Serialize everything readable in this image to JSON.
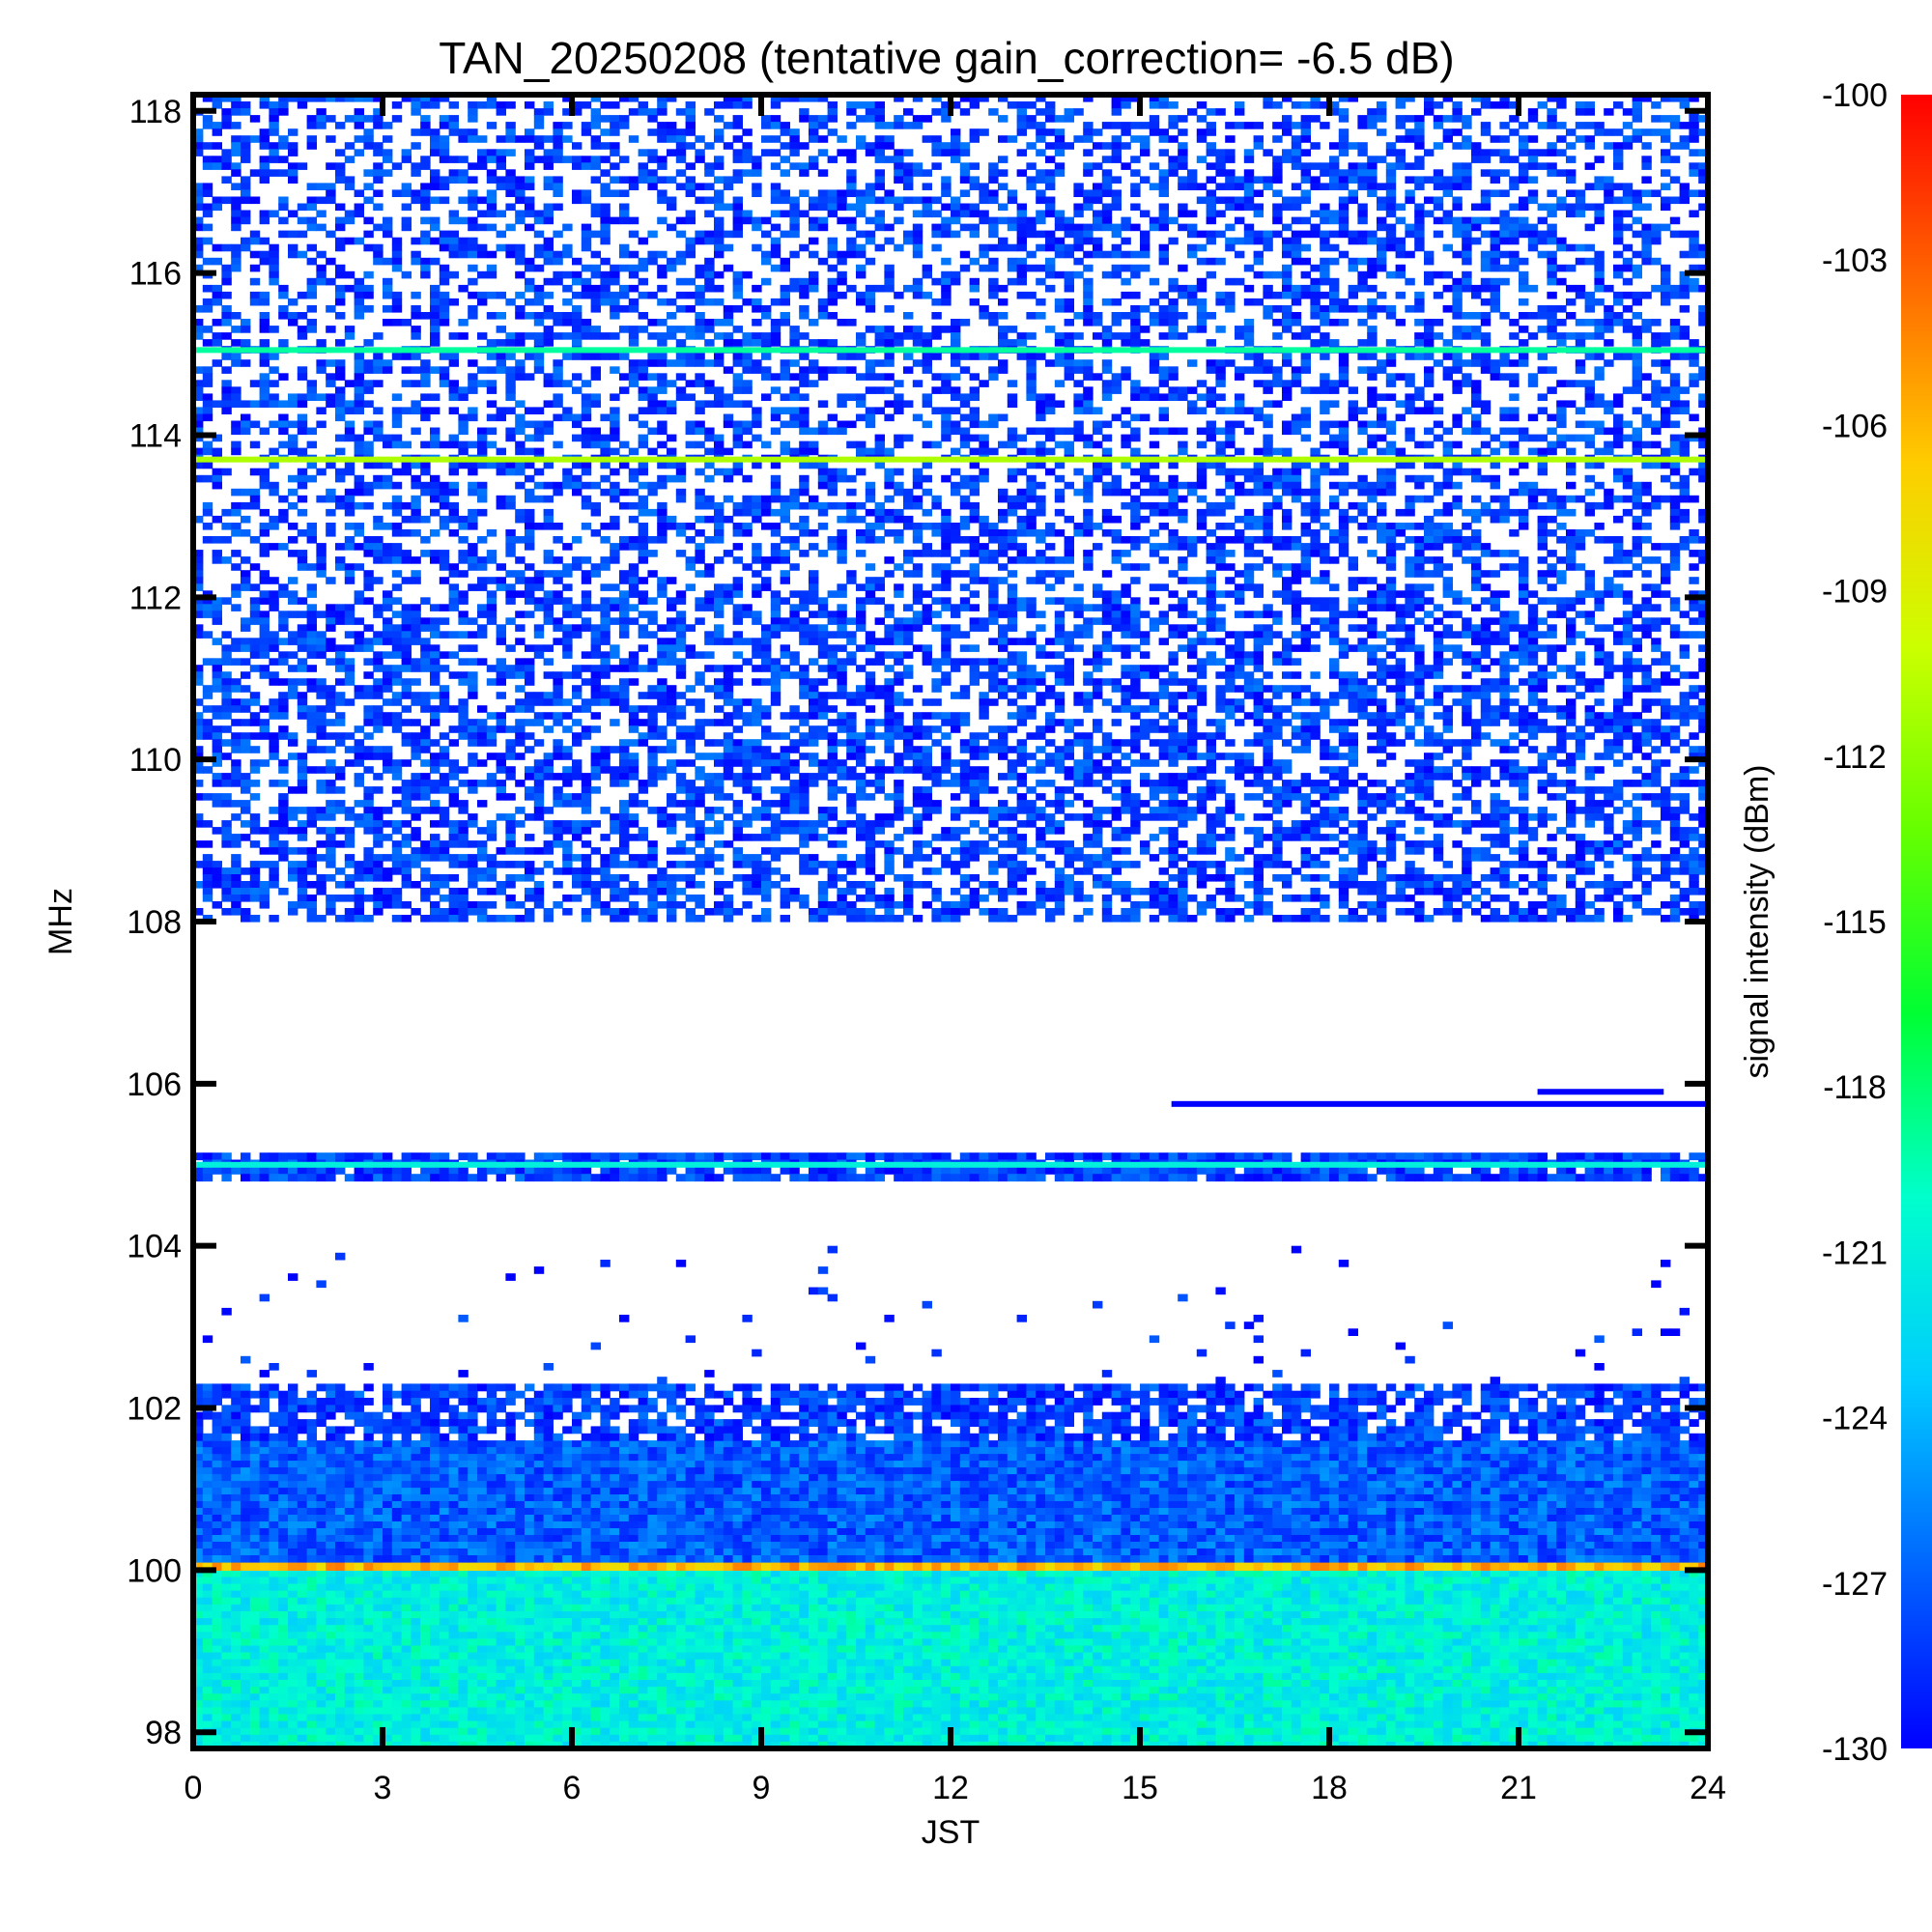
{
  "chart_data": {
    "type": "heatmap",
    "title": "TAN_20250208 (tentative gain_correction= -6.5 dB)",
    "xlabel": "JST",
    "ylabel": "MHz",
    "xlim": [
      0,
      24
    ],
    "ylim": [
      97.8,
      118.2
    ],
    "x_ticks": [
      "0",
      "3",
      "6",
      "9",
      "12",
      "15",
      "18",
      "21",
      "24"
    ],
    "y_ticks": [
      "98",
      "100",
      "102",
      "104",
      "106",
      "108",
      "110",
      "112",
      "114",
      "116",
      "118"
    ],
    "colorbar": {
      "label": "signal intensity (dBm)",
      "range": [
        -130,
        -100
      ],
      "ticks": [
        "-100",
        "-103",
        "-106",
        "-109",
        "-112",
        "-115",
        "-118",
        "-121",
        "-124",
        "-127",
        "-130"
      ],
      "colormap": [
        "#0000ff",
        "#0066ff",
        "#00ccff",
        "#00ffcc",
        "#00ff33",
        "#66ff00",
        "#ccff00",
        "#ffcc00",
        "#ff6600",
        "#ff0000"
      ]
    },
    "bands": [
      {
        "freq_from": 97.8,
        "freq_to": 100.0,
        "level_dBm": -121,
        "density": 1.0
      },
      {
        "freq_from": 100.0,
        "freq_to": 100.1,
        "level_dBm": -106,
        "density": 1.0
      },
      {
        "freq_from": 100.1,
        "freq_to": 101.6,
        "level_dBm": -127,
        "density": 1.0
      },
      {
        "freq_from": 101.6,
        "freq_to": 102.3,
        "level_dBm": -128,
        "density": 0.75
      },
      {
        "freq_from": 102.3,
        "freq_to": 104.0,
        "level_dBm": -129,
        "density": 0.02
      },
      {
        "freq_from": 104.8,
        "freq_to": 105.15,
        "level_dBm": -128,
        "density": 0.9
      },
      {
        "freq_from": 108.0,
        "freq_to": 112.0,
        "level_dBm": -128,
        "density": 0.55
      },
      {
        "freq_from": 112.0,
        "freq_to": 118.2,
        "level_dBm": -128,
        "density": 0.45
      }
    ],
    "lines": [
      {
        "freq": 105.0,
        "level_dBm": -121,
        "time_from": 0,
        "time_to": 24
      },
      {
        "freq": 113.7,
        "level_dBm": -111,
        "time_from": 0,
        "time_to": 24
      },
      {
        "freq": 115.05,
        "level_dBm": -119,
        "time_from": 0,
        "time_to": 24
      },
      {
        "freq": 105.75,
        "level_dBm": -130,
        "time_from": 15.5,
        "time_to": 24
      },
      {
        "freq": 105.9,
        "level_dBm": -130,
        "time_from": 21.3,
        "time_to": 23.3
      }
    ]
  }
}
